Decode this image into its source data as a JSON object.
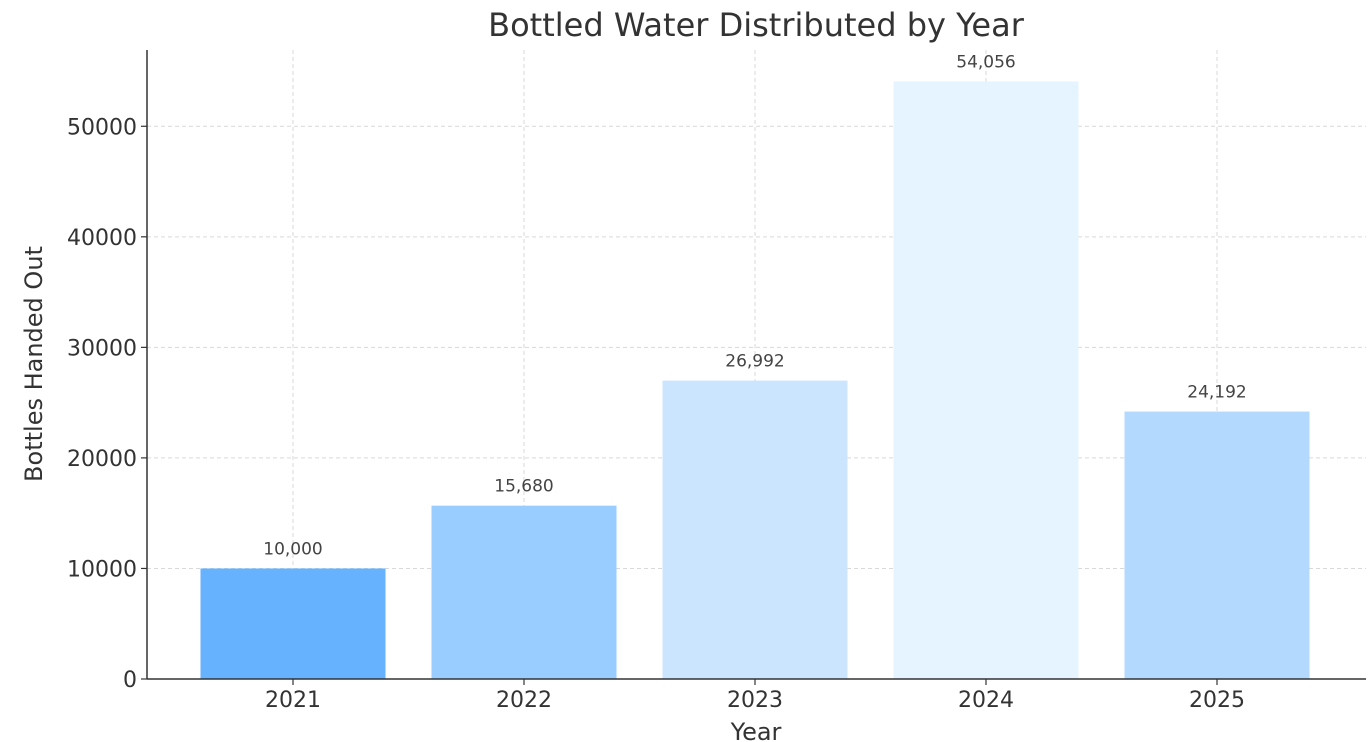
{
  "chart_data": {
    "type": "bar",
    "title": "Bottled Water Distributed by Year",
    "xlabel": "Year",
    "ylabel": "Bottles Handed Out",
    "categories": [
      "2021",
      "2022",
      "2023",
      "2024",
      "2025"
    ],
    "values": [
      10000,
      15680,
      26992,
      54056,
      24192
    ],
    "value_labels": [
      "10,000",
      "15,680",
      "26,992",
      "54,056",
      "24,192"
    ],
    "bar_colors": [
      "#66b2ff",
      "#99ccff",
      "#cce5ff",
      "#e6f4ff",
      "#b3d9ff"
    ],
    "ylim": [
      0,
      56900
    ],
    "yticks": [
      0,
      10000,
      20000,
      30000,
      40000,
      50000
    ],
    "ytick_labels": [
      "0",
      "10000",
      "20000",
      "30000",
      "40000",
      "50000"
    ],
    "grid": true,
    "legend": "none"
  }
}
